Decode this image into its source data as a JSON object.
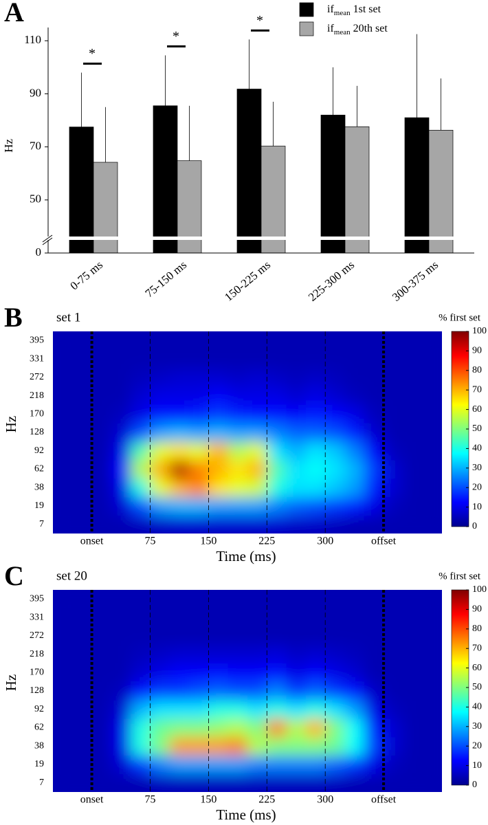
{
  "chart_data": [
    {
      "type": "bar",
      "panel": "A",
      "ylabel": "Hz",
      "categories": [
        "0-75 ms",
        "75-150 ms",
        "150-225 ms",
        "225-300 ms",
        "300-375 ms"
      ],
      "series": [
        {
          "name": [
            "if",
            "mean",
            "1st set"
          ],
          "color": "#000000",
          "values": [
            77.5,
            85.5,
            91.8,
            82,
            81
          ],
          "errors": [
            20.5,
            19,
            18.7,
            18,
            31.5
          ]
        },
        {
          "name": [
            "if",
            "mean",
            "20th set"
          ],
          "color": "#a6a6a6",
          "values": [
            64.2,
            64.8,
            70.3,
            77.6,
            76.3
          ],
          "errors": [
            20.8,
            20.7,
            16.7,
            15.4,
            19.5
          ]
        }
      ],
      "significance": [
        "*",
        "*",
        "*",
        null,
        null
      ],
      "ylim": [
        0,
        115
      ],
      "axis_break": [
        0,
        30
      ],
      "yticks": [
        0,
        50,
        70,
        90,
        110
      ]
    },
    {
      "type": "heatmap",
      "panel": "B",
      "title": "set 1",
      "xlabel": "Time (ms)",
      "ylabel": "Hz",
      "xlim": [
        -50,
        450
      ],
      "xticks": [
        {
          "value": 0,
          "label": "onset"
        },
        75,
        150,
        225,
        300,
        {
          "value": 375,
          "label": "offset"
        }
      ],
      "x": [
        -50,
        -25,
        0,
        25,
        50,
        75,
        100,
        125,
        150,
        175,
        200,
        225,
        250,
        275,
        300,
        325,
        350,
        375,
        400,
        425
      ],
      "y_categories": [
        7,
        19,
        38,
        62,
        92,
        128,
        170,
        218,
        272,
        331,
        395
      ],
      "values": [
        [
          5,
          5,
          5,
          5,
          6,
          7,
          8,
          8,
          8,
          8,
          8,
          8,
          7,
          7,
          6,
          5,
          5,
          5,
          5,
          5
        ],
        [
          5,
          5,
          5,
          8,
          20,
          28,
          30,
          30,
          28,
          28,
          28,
          25,
          22,
          20,
          18,
          15,
          10,
          6,
          5,
          5
        ],
        [
          5,
          5,
          5,
          10,
          40,
          60,
          70,
          75,
          65,
          60,
          58,
          40,
          35,
          35,
          32,
          28,
          15,
          8,
          5,
          5
        ],
        [
          5,
          5,
          5,
          12,
          55,
          70,
          95,
          75,
          70,
          65,
          70,
          45,
          35,
          38,
          35,
          30,
          18,
          8,
          5,
          5
        ],
        [
          5,
          5,
          5,
          10,
          45,
          60,
          65,
          60,
          70,
          55,
          60,
          35,
          30,
          35,
          32,
          25,
          12,
          6,
          5,
          5
        ],
        [
          5,
          5,
          5,
          8,
          20,
          28,
          30,
          28,
          30,
          28,
          28,
          25,
          22,
          22,
          20,
          15,
          8,
          5,
          5,
          5
        ],
        [
          5,
          5,
          5,
          6,
          10,
          14,
          14,
          15,
          18,
          15,
          14,
          14,
          12,
          15,
          12,
          10,
          6,
          5,
          5,
          5
        ],
        [
          5,
          5,
          5,
          5,
          8,
          10,
          10,
          10,
          12,
          10,
          10,
          10,
          8,
          10,
          8,
          6,
          5,
          5,
          5,
          5
        ],
        [
          5,
          5,
          5,
          5,
          6,
          7,
          8,
          8,
          8,
          7,
          8,
          7,
          6,
          7,
          6,
          5,
          5,
          5,
          5,
          5
        ],
        [
          5,
          5,
          5,
          5,
          5,
          5,
          5,
          5,
          5,
          5,
          5,
          5,
          5,
          5,
          5,
          5,
          5,
          5,
          5,
          5
        ],
        [
          5,
          5,
          5,
          5,
          5,
          5,
          5,
          5,
          5,
          5,
          5,
          5,
          5,
          5,
          5,
          5,
          5,
          5,
          5,
          5
        ]
      ],
      "colorbar": {
        "label": "% first set",
        "lim": [
          0,
          100
        ],
        "ticks": [
          0,
          10,
          20,
          30,
          40,
          50,
          60,
          70,
          80,
          90,
          100
        ]
      }
    },
    {
      "type": "heatmap",
      "panel": "C",
      "title": "set 20",
      "xlabel": "Time (ms)",
      "ylabel": "Hz",
      "xlim": [
        -50,
        450
      ],
      "xticks": [
        {
          "value": 0,
          "label": "onset"
        },
        75,
        150,
        225,
        300,
        {
          "value": 375,
          "label": "offset"
        }
      ],
      "x": [
        -50,
        -25,
        0,
        25,
        50,
        75,
        100,
        125,
        150,
        175,
        200,
        225,
        250,
        275,
        300,
        325,
        350,
        375,
        400,
        425
      ],
      "y_categories": [
        7,
        19,
        38,
        62,
        92,
        128,
        170,
        218,
        272,
        331,
        395
      ],
      "values": [
        [
          5,
          5,
          5,
          5,
          5,
          6,
          6,
          6,
          6,
          6,
          6,
          6,
          6,
          6,
          6,
          5,
          5,
          5,
          5,
          5
        ],
        [
          5,
          5,
          5,
          8,
          18,
          25,
          28,
          28,
          28,
          28,
          25,
          25,
          25,
          25,
          22,
          18,
          10,
          6,
          5,
          5
        ],
        [
          5,
          5,
          5,
          10,
          40,
          50,
          72,
          72,
          72,
          75,
          55,
          50,
          50,
          50,
          48,
          38,
          18,
          8,
          5,
          5
        ],
        [
          5,
          5,
          5,
          10,
          40,
          48,
          50,
          50,
          52,
          55,
          50,
          75,
          55,
          70,
          50,
          38,
          15,
          8,
          5,
          5
        ],
        [
          5,
          5,
          5,
          8,
          30,
          35,
          35,
          35,
          40,
          40,
          35,
          40,
          35,
          40,
          35,
          28,
          10,
          6,
          5,
          5
        ],
        [
          5,
          5,
          5,
          6,
          14,
          18,
          18,
          20,
          22,
          20,
          20,
          25,
          18,
          22,
          18,
          14,
          7,
          5,
          5,
          5
        ],
        [
          5,
          5,
          5,
          5,
          8,
          10,
          12,
          12,
          14,
          12,
          12,
          14,
          10,
          12,
          10,
          8,
          5,
          5,
          5,
          5
        ],
        [
          5,
          5,
          5,
          5,
          6,
          7,
          8,
          8,
          8,
          8,
          8,
          9,
          7,
          8,
          7,
          6,
          5,
          5,
          5,
          5
        ],
        [
          5,
          5,
          5,
          5,
          5,
          5,
          5,
          5,
          5,
          5,
          5,
          5,
          5,
          5,
          5,
          5,
          5,
          5,
          5,
          5
        ],
        [
          5,
          5,
          5,
          5,
          5,
          5,
          5,
          5,
          5,
          5,
          5,
          5,
          5,
          5,
          5,
          5,
          5,
          5,
          5,
          5
        ],
        [
          5,
          5,
          5,
          5,
          5,
          5,
          5,
          5,
          5,
          5,
          5,
          5,
          5,
          5,
          5,
          5,
          5,
          5,
          5,
          5
        ]
      ],
      "colorbar": {
        "label": "% first set",
        "lim": [
          0,
          100
        ],
        "ticks": [
          0,
          10,
          20,
          30,
          40,
          50,
          60,
          70,
          80,
          90,
          100
        ]
      }
    }
  ]
}
